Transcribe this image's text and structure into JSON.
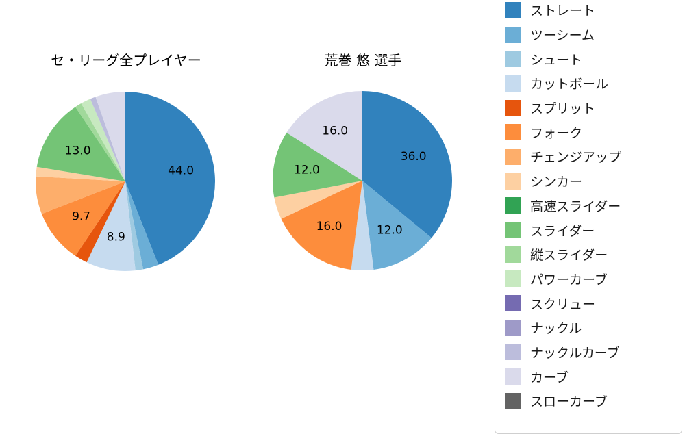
{
  "chart_data": [
    {
      "type": "pie",
      "title": "セ・リーグ全プレイヤー",
      "start_angle_deg": 90,
      "direction": "clockwise",
      "legend_position": "right",
      "labels": [
        "ストレート",
        "ツーシーム",
        "シュート",
        "カットボール",
        "スプリット",
        "フォーク",
        "チェンジアップ",
        "シンカー",
        "スライダー",
        "縦スライダー",
        "パワーカーブ",
        "ナックルカーブ",
        "カーブ"
      ],
      "values": [
        44.0,
        2.8,
        1.4,
        8.9,
        2.3,
        9.7,
        6.8,
        1.7,
        13.0,
        1.2,
        1.8,
        1.0,
        5.4
      ],
      "shown_labels": [
        "44.0",
        null,
        null,
        "8.9",
        null,
        "9.7",
        null,
        null,
        "13.0",
        null,
        null,
        null,
        null
      ],
      "colors": [
        "#3182bd",
        "#6baed6",
        "#9ecae1",
        "#c6dbef",
        "#e6550d",
        "#fd8d3c",
        "#fdae6b",
        "#fdd0a2",
        "#74c476",
        "#a1d99b",
        "#c7e9c0",
        "#bcbddc",
        "#dadaeb"
      ]
    },
    {
      "type": "pie",
      "title": "荒巻 悠 選手",
      "start_angle_deg": 90,
      "direction": "clockwise",
      "legend_position": "right",
      "labels": [
        "ストレート",
        "ツーシーム",
        "カットボール",
        "フォーク",
        "シンカー",
        "スライダー",
        "カーブ"
      ],
      "values": [
        36.0,
        12.0,
        4.0,
        16.0,
        4.0,
        12.0,
        16.0
      ],
      "shown_labels": [
        "36.0",
        "12.0",
        null,
        "16.0",
        null,
        "12.0",
        "16.0"
      ],
      "colors": [
        "#3182bd",
        "#6baed6",
        "#c6dbef",
        "#fd8d3c",
        "#fdd0a2",
        "#74c476",
        "#dadaeb"
      ]
    }
  ],
  "legend": {
    "items": [
      {
        "label": "ストレート",
        "color": "#3182bd"
      },
      {
        "label": "ツーシーム",
        "color": "#6baed6"
      },
      {
        "label": "シュート",
        "color": "#9ecae1"
      },
      {
        "label": "カットボール",
        "color": "#c6dbef"
      },
      {
        "label": "スプリット",
        "color": "#e6550d"
      },
      {
        "label": "フォーク",
        "color": "#fd8d3c"
      },
      {
        "label": "チェンジアップ",
        "color": "#fdae6b"
      },
      {
        "label": "シンカー",
        "color": "#fdd0a2"
      },
      {
        "label": "高速スライダー",
        "color": "#31a354"
      },
      {
        "label": "スライダー",
        "color": "#74c476"
      },
      {
        "label": "縦スライダー",
        "color": "#a1d99b"
      },
      {
        "label": "パワーカーブ",
        "color": "#c7e9c0"
      },
      {
        "label": "スクリュー",
        "color": "#756bb1"
      },
      {
        "label": "ナックル",
        "color": "#9e9ac8"
      },
      {
        "label": "ナックルカーブ",
        "color": "#bcbddc"
      },
      {
        "label": "カーブ",
        "color": "#dadaeb"
      },
      {
        "label": "スローカーブ",
        "color": "#636363"
      }
    ]
  }
}
